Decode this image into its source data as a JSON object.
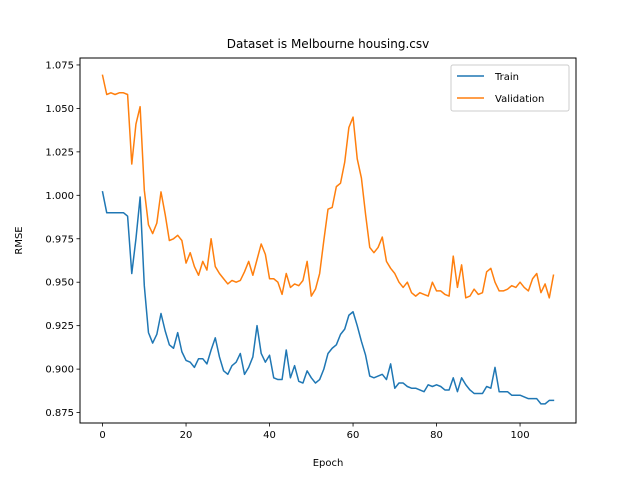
{
  "chart_data": {
    "type": "line",
    "title": "Dataset is Melbourne housing.csv",
    "xlabel": "Epoch",
    "ylabel": "RMSE",
    "xlim": [
      -5.4,
      113.4
    ],
    "ylim": [
      0.869,
      1.079
    ],
    "xticks": [
      0,
      20,
      40,
      60,
      80,
      100
    ],
    "yticks": [
      0.875,
      0.9,
      0.925,
      0.95,
      0.975,
      1.0,
      1.025,
      1.05,
      1.075
    ],
    "ytick_labels": [
      "0.875",
      "0.900",
      "0.925",
      "0.950",
      "0.975",
      "1.000",
      "1.025",
      "1.050",
      "1.075"
    ],
    "grid": false,
    "legend_position": "top-right",
    "series": [
      {
        "name": "Train",
        "color": "#1f77b4",
        "values": [
          1.002,
          0.99,
          0.99,
          0.99,
          0.99,
          0.99,
          0.988,
          0.955,
          0.975,
          0.999,
          0.948,
          0.921,
          0.915,
          0.92,
          0.932,
          0.922,
          0.914,
          0.912,
          0.921,
          0.91,
          0.905,
          0.904,
          0.901,
          0.906,
          0.906,
          0.903,
          0.911,
          0.918,
          0.907,
          0.899,
          0.897,
          0.902,
          0.904,
          0.909,
          0.897,
          0.901,
          0.907,
          0.925,
          0.909,
          0.904,
          0.908,
          0.895,
          0.894,
          0.894,
          0.911,
          0.895,
          0.902,
          0.893,
          0.892,
          0.899,
          0.895,
          0.892,
          0.894,
          0.9,
          0.909,
          0.912,
          0.914,
          0.92,
          0.923,
          0.931,
          0.933,
          0.925,
          0.916,
          0.908,
          0.896,
          0.895,
          0.896,
          0.897,
          0.894,
          0.903,
          0.889,
          0.892,
          0.892,
          0.89,
          0.889,
          0.889,
          0.888,
          0.887,
          0.891,
          0.89,
          0.891,
          0.89,
          0.888,
          0.888,
          0.895,
          0.887,
          0.895,
          0.891,
          0.888,
          0.886,
          0.886,
          0.886,
          0.89,
          0.889,
          0.901,
          0.887,
          0.887,
          0.887,
          0.885,
          0.885,
          0.885,
          0.884,
          0.883,
          0.883,
          0.883,
          0.88,
          0.88,
          0.882,
          0.882
        ]
      },
      {
        "name": "Validation",
        "color": "#ff7f0e",
        "values": [
          1.069,
          1.058,
          1.059,
          1.058,
          1.059,
          1.059,
          1.058,
          1.018,
          1.041,
          1.051,
          1.003,
          0.983,
          0.978,
          0.984,
          1.002,
          0.989,
          0.974,
          0.975,
          0.977,
          0.974,
          0.961,
          0.967,
          0.959,
          0.954,
          0.962,
          0.957,
          0.975,
          0.959,
          0.955,
          0.952,
          0.949,
          0.951,
          0.95,
          0.951,
          0.956,
          0.962,
          0.954,
          0.963,
          0.972,
          0.966,
          0.952,
          0.952,
          0.95,
          0.943,
          0.955,
          0.947,
          0.949,
          0.948,
          0.951,
          0.962,
          0.942,
          0.946,
          0.955,
          0.974,
          0.992,
          0.993,
          1.005,
          1.007,
          1.019,
          1.039,
          1.045,
          1.021,
          1.01,
          0.989,
          0.97,
          0.967,
          0.97,
          0.976,
          0.962,
          0.958,
          0.955,
          0.95,
          0.947,
          0.95,
          0.944,
          0.942,
          0.944,
          0.943,
          0.942,
          0.95,
          0.945,
          0.945,
          0.943,
          0.942,
          0.965,
          0.947,
          0.96,
          0.941,
          0.942,
          0.946,
          0.943,
          0.944,
          0.956,
          0.958,
          0.95,
          0.945,
          0.945,
          0.946,
          0.948,
          0.947,
          0.95,
          0.947,
          0.945,
          0.952,
          0.955,
          0.944,
          0.949,
          0.941,
          0.954
        ]
      }
    ]
  }
}
